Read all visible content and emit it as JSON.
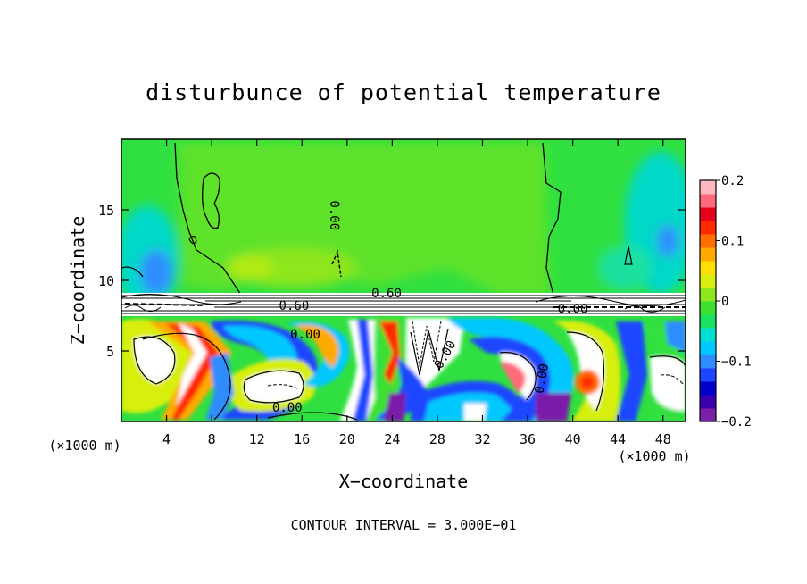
{
  "chart_data": {
    "type": "heatmap",
    "title": "disturbunce of potential temperature",
    "xlabel": "X−coordinate",
    "ylabel": "Z−coordinate",
    "x_unit_left": "(×1000 m)",
    "x_unit_right": "(×1000 m)",
    "xlim": [
      0,
      50
    ],
    "ylim": [
      0,
      20
    ],
    "x_ticks": [
      4,
      8,
      12,
      16,
      20,
      24,
      28,
      32,
      36,
      40,
      44,
      48
    ],
    "y_ticks": [
      5,
      10,
      15
    ],
    "colorbar": {
      "range": [
        -0.2,
        0.2
      ],
      "tick_values": [
        0.2,
        0.1,
        0,
        -0.1,
        -0.2
      ],
      "tick_labels": [
        "0.2",
        "0.1",
        "0",
        "−0.1",
        "−0.2"
      ],
      "colors": [
        "#7a1fa8",
        "#3a00b0",
        "#0000cc",
        "#1c46ff",
        "#2f8cff",
        "#00c8ff",
        "#00e0d0",
        "#19e060",
        "#3ee030",
        "#8ee61c",
        "#d8ee10",
        "#ffe000",
        "#ffaa00",
        "#ff6e00",
        "#ff2a00",
        "#e8001a",
        "#ff6a7a",
        "#ffb8c0"
      ]
    },
    "contour_labels": [
      {
        "text": "0.00",
        "x": 18.5,
        "z": 14.6,
        "rotate": 90
      },
      {
        "text": "0.60",
        "x": 23.5,
        "z": 8.8,
        "rotate": 0
      },
      {
        "text": "0.60",
        "x": 15.3,
        "z": 7.9,
        "rotate": 0
      },
      {
        "text": "0.00",
        "x": 16.3,
        "z": 5.9,
        "rotate": 0
      },
      {
        "text": "0.00",
        "x": 40.0,
        "z": 7.7,
        "rotate": 0
      },
      {
        "text": "0.00",
        "x": 14.7,
        "z": 0.7,
        "rotate": 0
      },
      {
        "text": "0.00",
        "x": 29.0,
        "z": 4.6,
        "rotate": -60
      },
      {
        "text": "0.00",
        "x": 37.6,
        "z": 3.0,
        "rotate": -80
      }
    ],
    "footer": "CONTOUR INTERVAL = 3.000E−01"
  }
}
